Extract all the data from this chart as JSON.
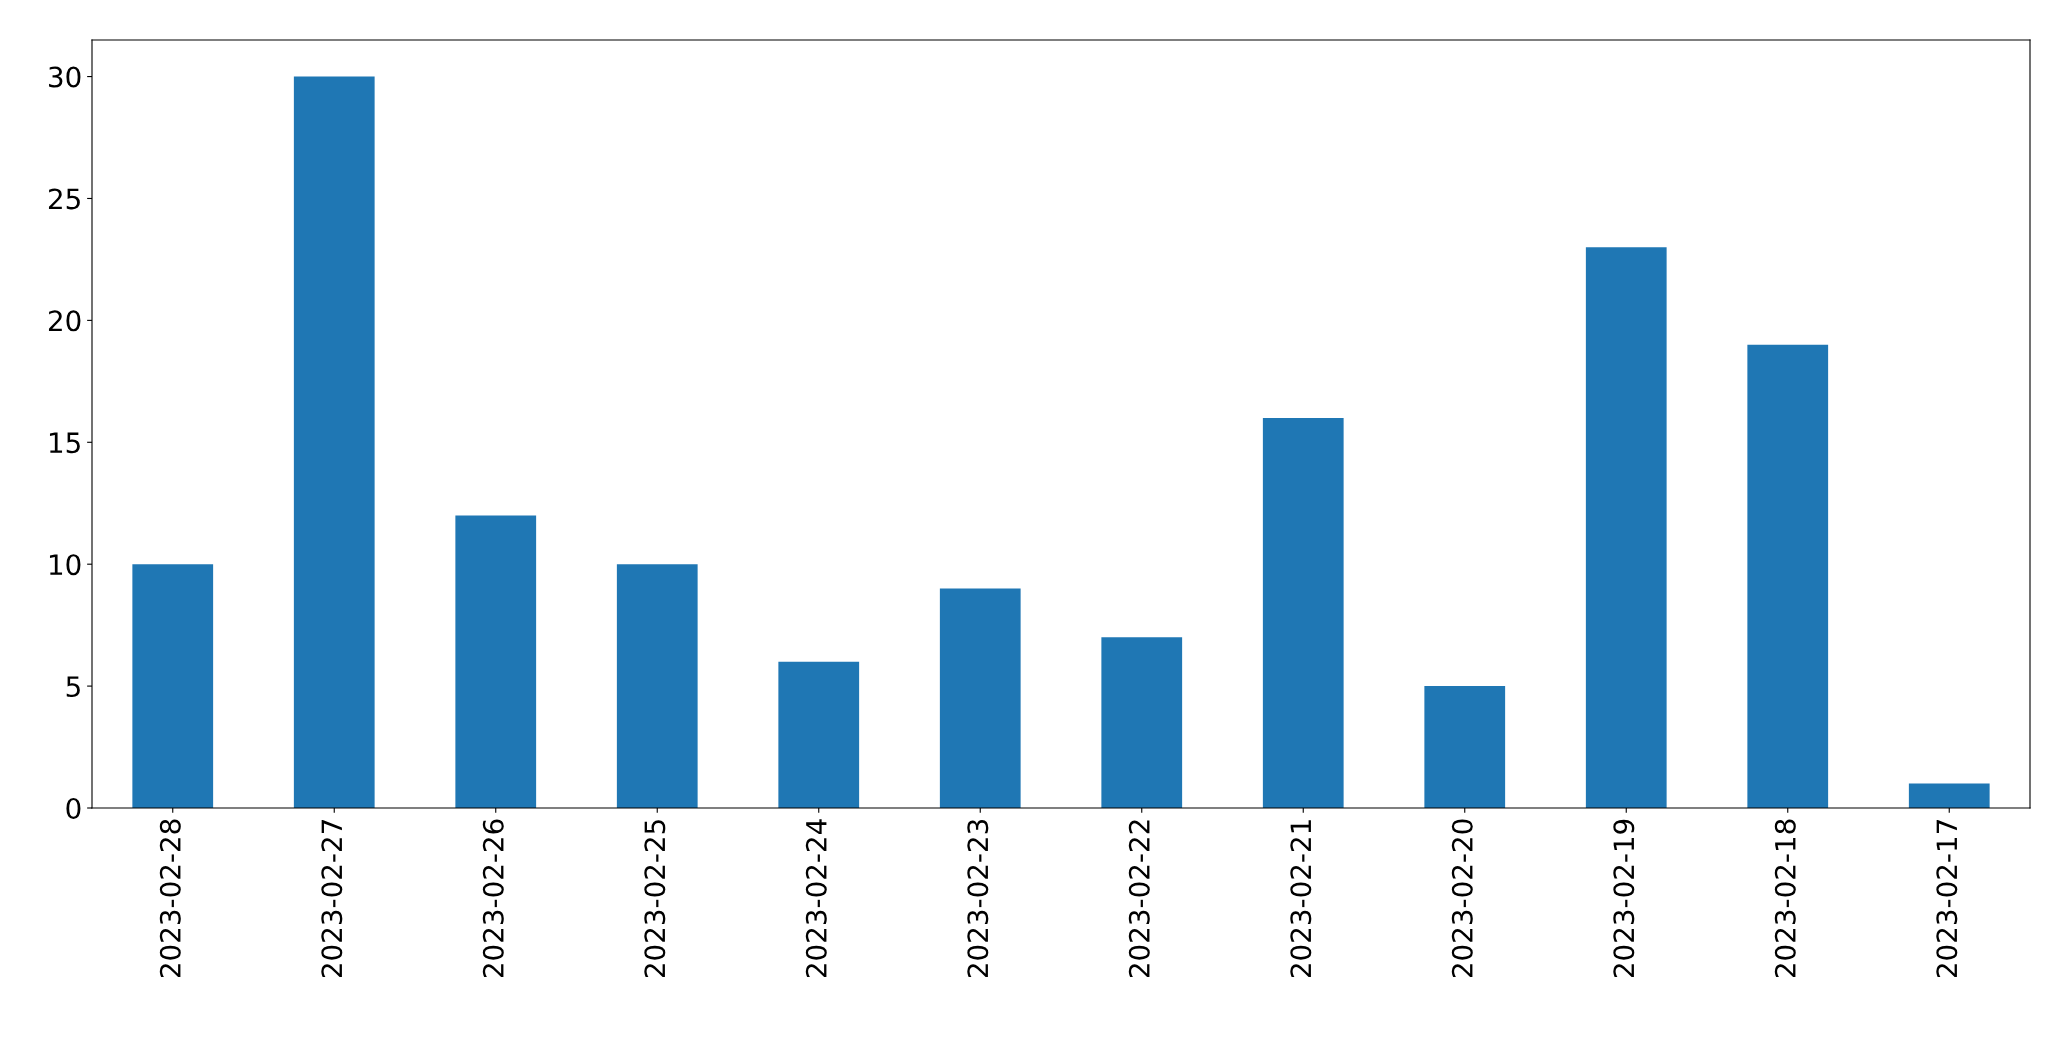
{
  "chart_data": {
    "type": "bar",
    "categories": [
      "2023-02-28",
      "2023-02-27",
      "2023-02-26",
      "2023-02-25",
      "2023-02-24",
      "2023-02-23",
      "2023-02-22",
      "2023-02-21",
      "2023-02-20",
      "2023-02-19",
      "2023-02-18",
      "2023-02-17"
    ],
    "values": [
      10,
      30,
      12,
      10,
      6,
      9,
      7,
      16,
      5,
      23,
      19,
      1
    ],
    "color": "#1f77b4",
    "ylim": [
      0,
      31.5
    ],
    "yticks": [
      0,
      5,
      10,
      15,
      20,
      25,
      30
    ],
    "grid": false,
    "legend": false
  }
}
